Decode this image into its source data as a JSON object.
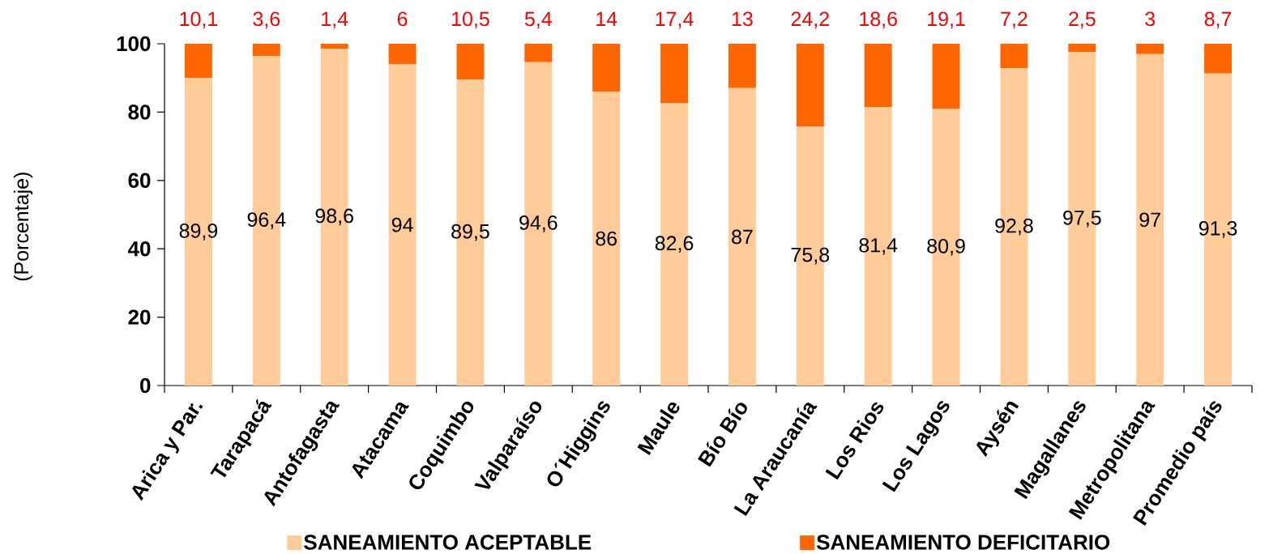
{
  "chart_data": {
    "type": "bar",
    "stacked": true,
    "ylabel": "(Porcentaje)",
    "categories": [
      "Arica y Par.",
      "Tarapacá",
      "Antofagasta",
      "Atacama",
      "Coquimbo",
      "Valparaíso",
      "O´Higgins",
      "Maule",
      "Bío Bío",
      "La Araucanía",
      "Los Rios",
      "Los Lagos",
      "Aysén",
      "Magallanes",
      "Metropolitana",
      "Promedio país"
    ],
    "series": [
      {
        "name": "SANEAMIENTO ACEPTABLE",
        "color": "#FFCC99",
        "values": [
          89.9,
          96.4,
          98.6,
          94,
          89.5,
          94.6,
          86,
          82.6,
          87,
          75.8,
          81.4,
          80.9,
          92.8,
          97.5,
          97,
          91.3
        ],
        "value_labels": [
          "89,9",
          "96,4",
          "98,6",
          "94",
          "89,5",
          "94,6",
          "86",
          "82,6",
          "87",
          "75,8",
          "81,4",
          "80,9",
          "92,8",
          "97,5",
          "97",
          "91,3"
        ]
      },
      {
        "name": "SANEAMIENTO DEFICITARIO",
        "color": "#FF6600",
        "values": [
          10.1,
          3.6,
          1.4,
          6,
          10.5,
          5.4,
          14,
          17.4,
          13,
          24.2,
          18.6,
          19.1,
          7.2,
          2.5,
          3,
          8.7
        ],
        "value_labels": [
          "10,1",
          "3,6",
          "1,4",
          "6",
          "10,5",
          "5,4",
          "14",
          "17,4",
          "13",
          "24,2",
          "18,6",
          "19,1",
          "7,2",
          "2,5",
          "3",
          "8,7"
        ]
      }
    ],
    "ylim": [
      0,
      100
    ],
    "yticks": [
      0,
      20,
      40,
      60,
      80,
      100
    ],
    "legend": "bottom"
  }
}
